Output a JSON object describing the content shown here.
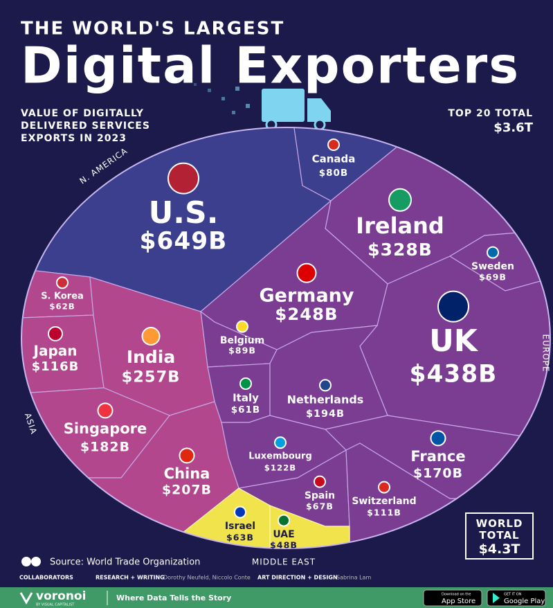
{
  "chart_data": {
    "type": "voronoi",
    "kicker": "THE WORLD'S LARGEST",
    "title": "Digital Exporters",
    "subtitle": [
      "VALUE OF DIGITALLY",
      "DELIVERED SERVICES",
      "EXPORTS IN 2023"
    ],
    "top_total": {
      "label": "TOP 20 TOTAL",
      "value": 3600,
      "value_label": "$3.6T"
    },
    "world_total": {
      "label": "WORLD TOTAL",
      "value": 4300,
      "value_label": "$4.3T"
    },
    "regions": [
      {
        "name": "N. AMERICA",
        "color": "#3b3f8e"
      },
      {
        "name": "EUROPE",
        "color": "#7a3d92"
      },
      {
        "name": "ASIA",
        "color": "#b2478d"
      },
      {
        "name": "MIDDLE EAST",
        "color": "#f1e34c"
      }
    ],
    "categories": [
      "U.S.",
      "Canada",
      "Ireland",
      "Sweden",
      "Germany",
      "UK",
      "Belgium",
      "Italy",
      "Netherlands",
      "France",
      "Luxembourg",
      "Spain",
      "Switzerland",
      "S. Korea",
      "Japan",
      "India",
      "Singapore",
      "China",
      "Israel",
      "UAE"
    ],
    "values": [
      649,
      80,
      328,
      69,
      248,
      438,
      89,
      61,
      194,
      170,
      122,
      67,
      111,
      62,
      116,
      257,
      182,
      207,
      63,
      48
    ],
    "value_labels": [
      "$649B",
      "$80B",
      "$328B",
      "$69B",
      "$248B",
      "$438B",
      "$89B",
      "$61B",
      "$194B",
      "$170B",
      "$122B",
      "$67B",
      "$111B",
      "$62B",
      "$116B",
      "$257B",
      "$182B",
      "$207B",
      "$63B",
      "$48B"
    ],
    "region_of": [
      0,
      0,
      1,
      1,
      1,
      1,
      1,
      1,
      1,
      1,
      1,
      1,
      1,
      2,
      2,
      2,
      2,
      2,
      3,
      3
    ]
  },
  "footer": {
    "source": "Source: World Trade Organization",
    "collaborators": "COLLABORATORS",
    "research": "RESEARCH + WRITING",
    "writers": "Dorothy Neufeld, Niccolo Conte",
    "design": "ART DIRECTION + DESIGN",
    "designer": "Sabrina Lam",
    "brand": "voronoi",
    "brand_sub": "BY VISUAL CAPITALIST",
    "tagline": "Where Data Tells the Story",
    "app_store_top": "Download on the",
    "app_store": "App Store",
    "google_play_top": "GET IT ON",
    "google_play": "Google Play"
  }
}
